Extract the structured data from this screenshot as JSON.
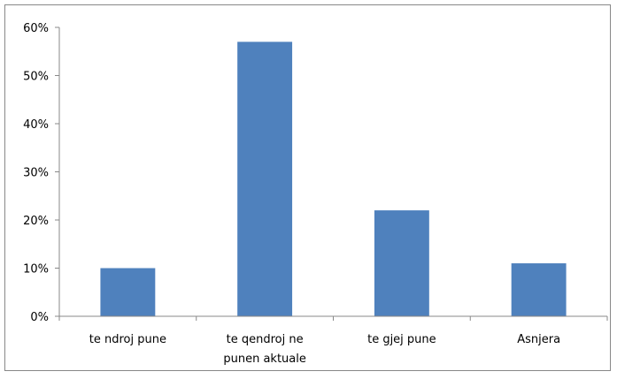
{
  "chart_data": {
    "type": "bar",
    "categories": [
      "te ndroj pune",
      "te qendroj ne punen aktuale",
      "te gjej pune",
      "Asnjera"
    ],
    "values": [
      10,
      57,
      22,
      11
    ],
    "color": "#4f81bd",
    "ylim": [
      0,
      60
    ],
    "yticks": [
      {
        "value": 0,
        "label": "0%"
      },
      {
        "value": 10,
        "label": "10%"
      },
      {
        "value": 20,
        "label": "20%"
      },
      {
        "value": 30,
        "label": "30%"
      },
      {
        "value": 40,
        "label": "40%"
      },
      {
        "value": 50,
        "label": "50%"
      },
      {
        "value": 60,
        "label": "60%"
      }
    ],
    "grid": false
  }
}
